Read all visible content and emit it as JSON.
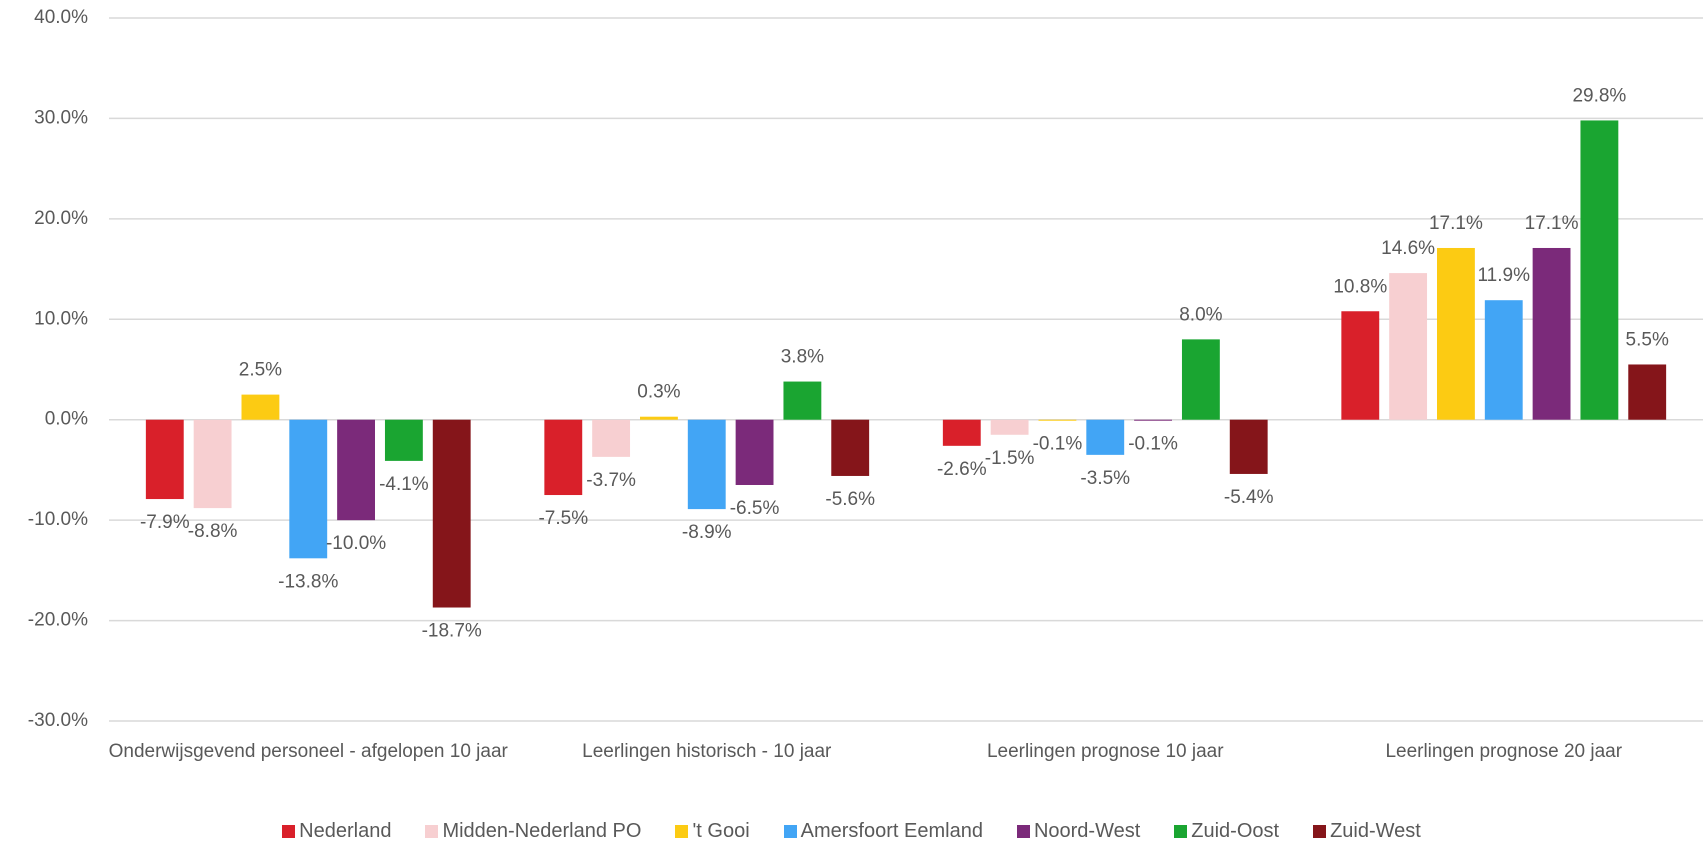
{
  "chart_data": {
    "type": "bar",
    "categories": [
      "Onderwijsgevend personeel - afgelopen 10 jaar",
      "Leerlingen historisch - 10 jaar",
      "Leerlingen prognose 10 jaar",
      "Leerlingen prognose 20 jaar"
    ],
    "series": [
      {
        "name": "Nederland",
        "color": "#d9202a",
        "values": [
          -7.9,
          -7.5,
          -2.6,
          10.8
        ],
        "value_labels": [
          "-7.9%",
          "-7.5%",
          "-2.6%",
          "10.8%"
        ]
      },
      {
        "name": "Midden-Nederland PO",
        "color": "#f7cfd1",
        "values": [
          -8.8,
          -3.7,
          -1.5,
          14.6
        ],
        "value_labels": [
          "-8.8%",
          "-3.7%",
          "-1.5%",
          "14.6%"
        ]
      },
      {
        "name": "'t Gooi",
        "color": "#fccb13",
        "values": [
          2.5,
          0.3,
          -0.1,
          17.1
        ],
        "value_labels": [
          "2.5%",
          "0.3%",
          "-0.1%",
          "17.1%"
        ]
      },
      {
        "name": "Amersfoort Eemland",
        "color": "#42a5f5",
        "values": [
          -13.8,
          -8.9,
          -3.5,
          11.9
        ],
        "value_labels": [
          "-13.8%",
          "-8.9%",
          "-3.5%",
          "11.9%"
        ]
      },
      {
        "name": "Noord-West",
        "color": "#7b2a7a",
        "values": [
          -10.0,
          -6.5,
          -0.1,
          17.1
        ],
        "value_labels": [
          "-10.0%",
          "-6.5%",
          "-0.1%",
          "17.1%"
        ]
      },
      {
        "name": "Zuid-Oost",
        "color": "#1aa531",
        "values": [
          -4.1,
          3.8,
          8.0,
          29.8
        ],
        "value_labels": [
          "-4.1%",
          "3.8%",
          "8.0%",
          "29.8%"
        ]
      },
      {
        "name": "Zuid-West",
        "color": "#85151a",
        "values": [
          -18.7,
          -5.6,
          -5.4,
          5.5
        ],
        "value_labels": [
          "-18.7%",
          "-5.6%",
          "-5.4%",
          "5.5%"
        ]
      }
    ],
    "ylim": [
      -30,
      40
    ],
    "yticks": [
      {
        "value": -30,
        "label": "-30.0%"
      },
      {
        "value": -20,
        "label": "-20.0%"
      },
      {
        "value": -10,
        "label": "-10.0%"
      },
      {
        "value": 0,
        "label": "0.0%"
      },
      {
        "value": 10,
        "label": "10.0%"
      },
      {
        "value": 20,
        "label": "20.0%"
      },
      {
        "value": 30,
        "label": "30.0%"
      },
      {
        "value": 40,
        "label": "40.0%"
      }
    ],
    "grid": true,
    "legend": "bottom"
  }
}
